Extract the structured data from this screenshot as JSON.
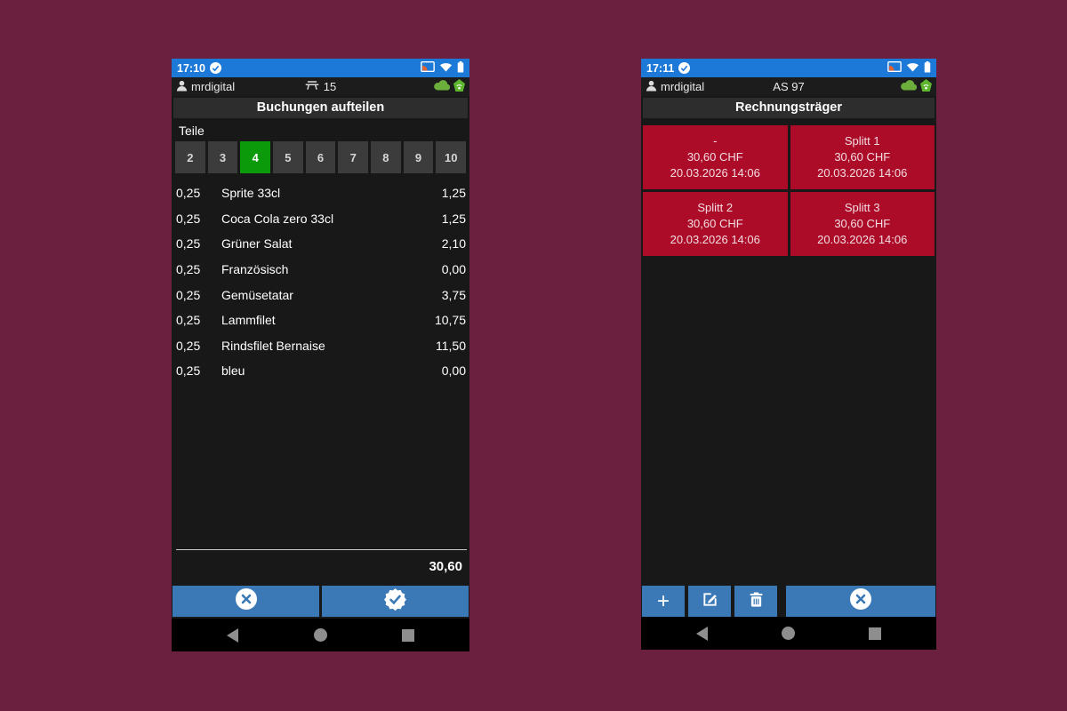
{
  "page": {
    "background": "#6b2040"
  },
  "colors": {
    "status_blue": "#1d79d7",
    "action_blue": "#3a79b6",
    "selected_green": "#0a9a0a",
    "card_red": "#ad0c29",
    "icon_green": "#6cae3c"
  },
  "icons": {
    "plus": "+",
    "status_check": "check-in-circle",
    "cancel": "x-in-circle",
    "confirm": "check-seal",
    "edit": "edit-square-pencil",
    "delete": "trash-can",
    "user": "person-silhouette",
    "table": "table",
    "sync_cloud": "cloud",
    "station_beacon": "beacon",
    "cast": "screen-cast",
    "wifi": "wifi",
    "battery": "battery"
  },
  "left_phone": {
    "status_time": "17:10",
    "user": "mrdigital",
    "table_number": "15",
    "title": "Buchungen aufteilen",
    "parts_label": "Teile",
    "split_options": [
      "2",
      "3",
      "4",
      "5",
      "6",
      "7",
      "8",
      "9",
      "10"
    ],
    "selected_option": "4",
    "items": [
      {
        "qty": "0,25",
        "name": "Sprite 33cl",
        "price": "1,25"
      },
      {
        "qty": "0,25",
        "name": "Coca Cola zero 33cl",
        "price": "1,25"
      },
      {
        "qty": "0,25",
        "name": "Grüner Salat",
        "price": "2,10"
      },
      {
        "qty": "0,25",
        "name": "Französisch",
        "price": "0,00"
      },
      {
        "qty": "0,25",
        "name": "Gemüsetatar",
        "price": "3,75"
      },
      {
        "qty": "0,25",
        "name": "Lammfilet",
        "price": "10,75"
      },
      {
        "qty": "0,25",
        "name": "Rindsfilet Bernaise",
        "price": "11,50"
      },
      {
        "qty": "0,25",
        "name": "bleu",
        "price": "0,00"
      }
    ],
    "total": "30,60"
  },
  "right_phone": {
    "status_time": "17:11",
    "user": "mrdigital",
    "header_center": "AS 97",
    "title": "Rechnungsträger",
    "cards": [
      {
        "name": "-",
        "amount": "30,60 CHF",
        "datetime": "20.03.2026 14:06"
      },
      {
        "name": "Splitt 1",
        "amount": "30,60 CHF",
        "datetime": "20.03.2026 14:06"
      },
      {
        "name": "Splitt 2",
        "amount": "30,60 CHF",
        "datetime": "20.03.2026 14:06"
      },
      {
        "name": "Splitt 3",
        "amount": "30,60 CHF",
        "datetime": "20.03.2026 14:06"
      }
    ]
  }
}
